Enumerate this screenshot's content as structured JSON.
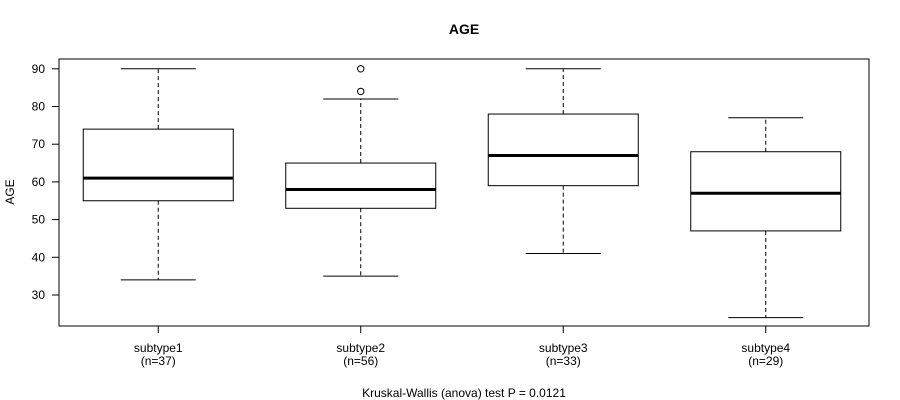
{
  "chart_data": {
    "type": "boxplot",
    "title": "AGE",
    "ylabel": "AGE",
    "xlabel": "",
    "ylim": [
      21,
      92.5
    ],
    "yticks": [
      30,
      40,
      50,
      60,
      70,
      80,
      90
    ],
    "grid": false,
    "legend": "none",
    "footnote": "Kruskal-Wallis (anova) test P = 0.0121",
    "groups": [
      {
        "category": "subtype1",
        "count_label": "(n=37)",
        "whisker_low": 34,
        "q1": 55,
        "median": 61,
        "q3": 74,
        "whisker_high": 90,
        "outliers": []
      },
      {
        "category": "subtype2",
        "count_label": "(n=56)",
        "whisker_low": 35,
        "q1": 53,
        "median": 58,
        "q3": 65,
        "whisker_high": 82,
        "outliers": [
          84,
          90
        ]
      },
      {
        "category": "subtype3",
        "count_label": "(n=33)",
        "whisker_low": 41,
        "q1": 59,
        "median": 67,
        "q3": 78,
        "whisker_high": 90,
        "outliers": []
      },
      {
        "category": "subtype4",
        "count_label": "(n=29)",
        "whisker_low": 24,
        "q1": 47,
        "median": 57,
        "q3": 68,
        "whisker_high": 77,
        "outliers": []
      }
    ]
  }
}
